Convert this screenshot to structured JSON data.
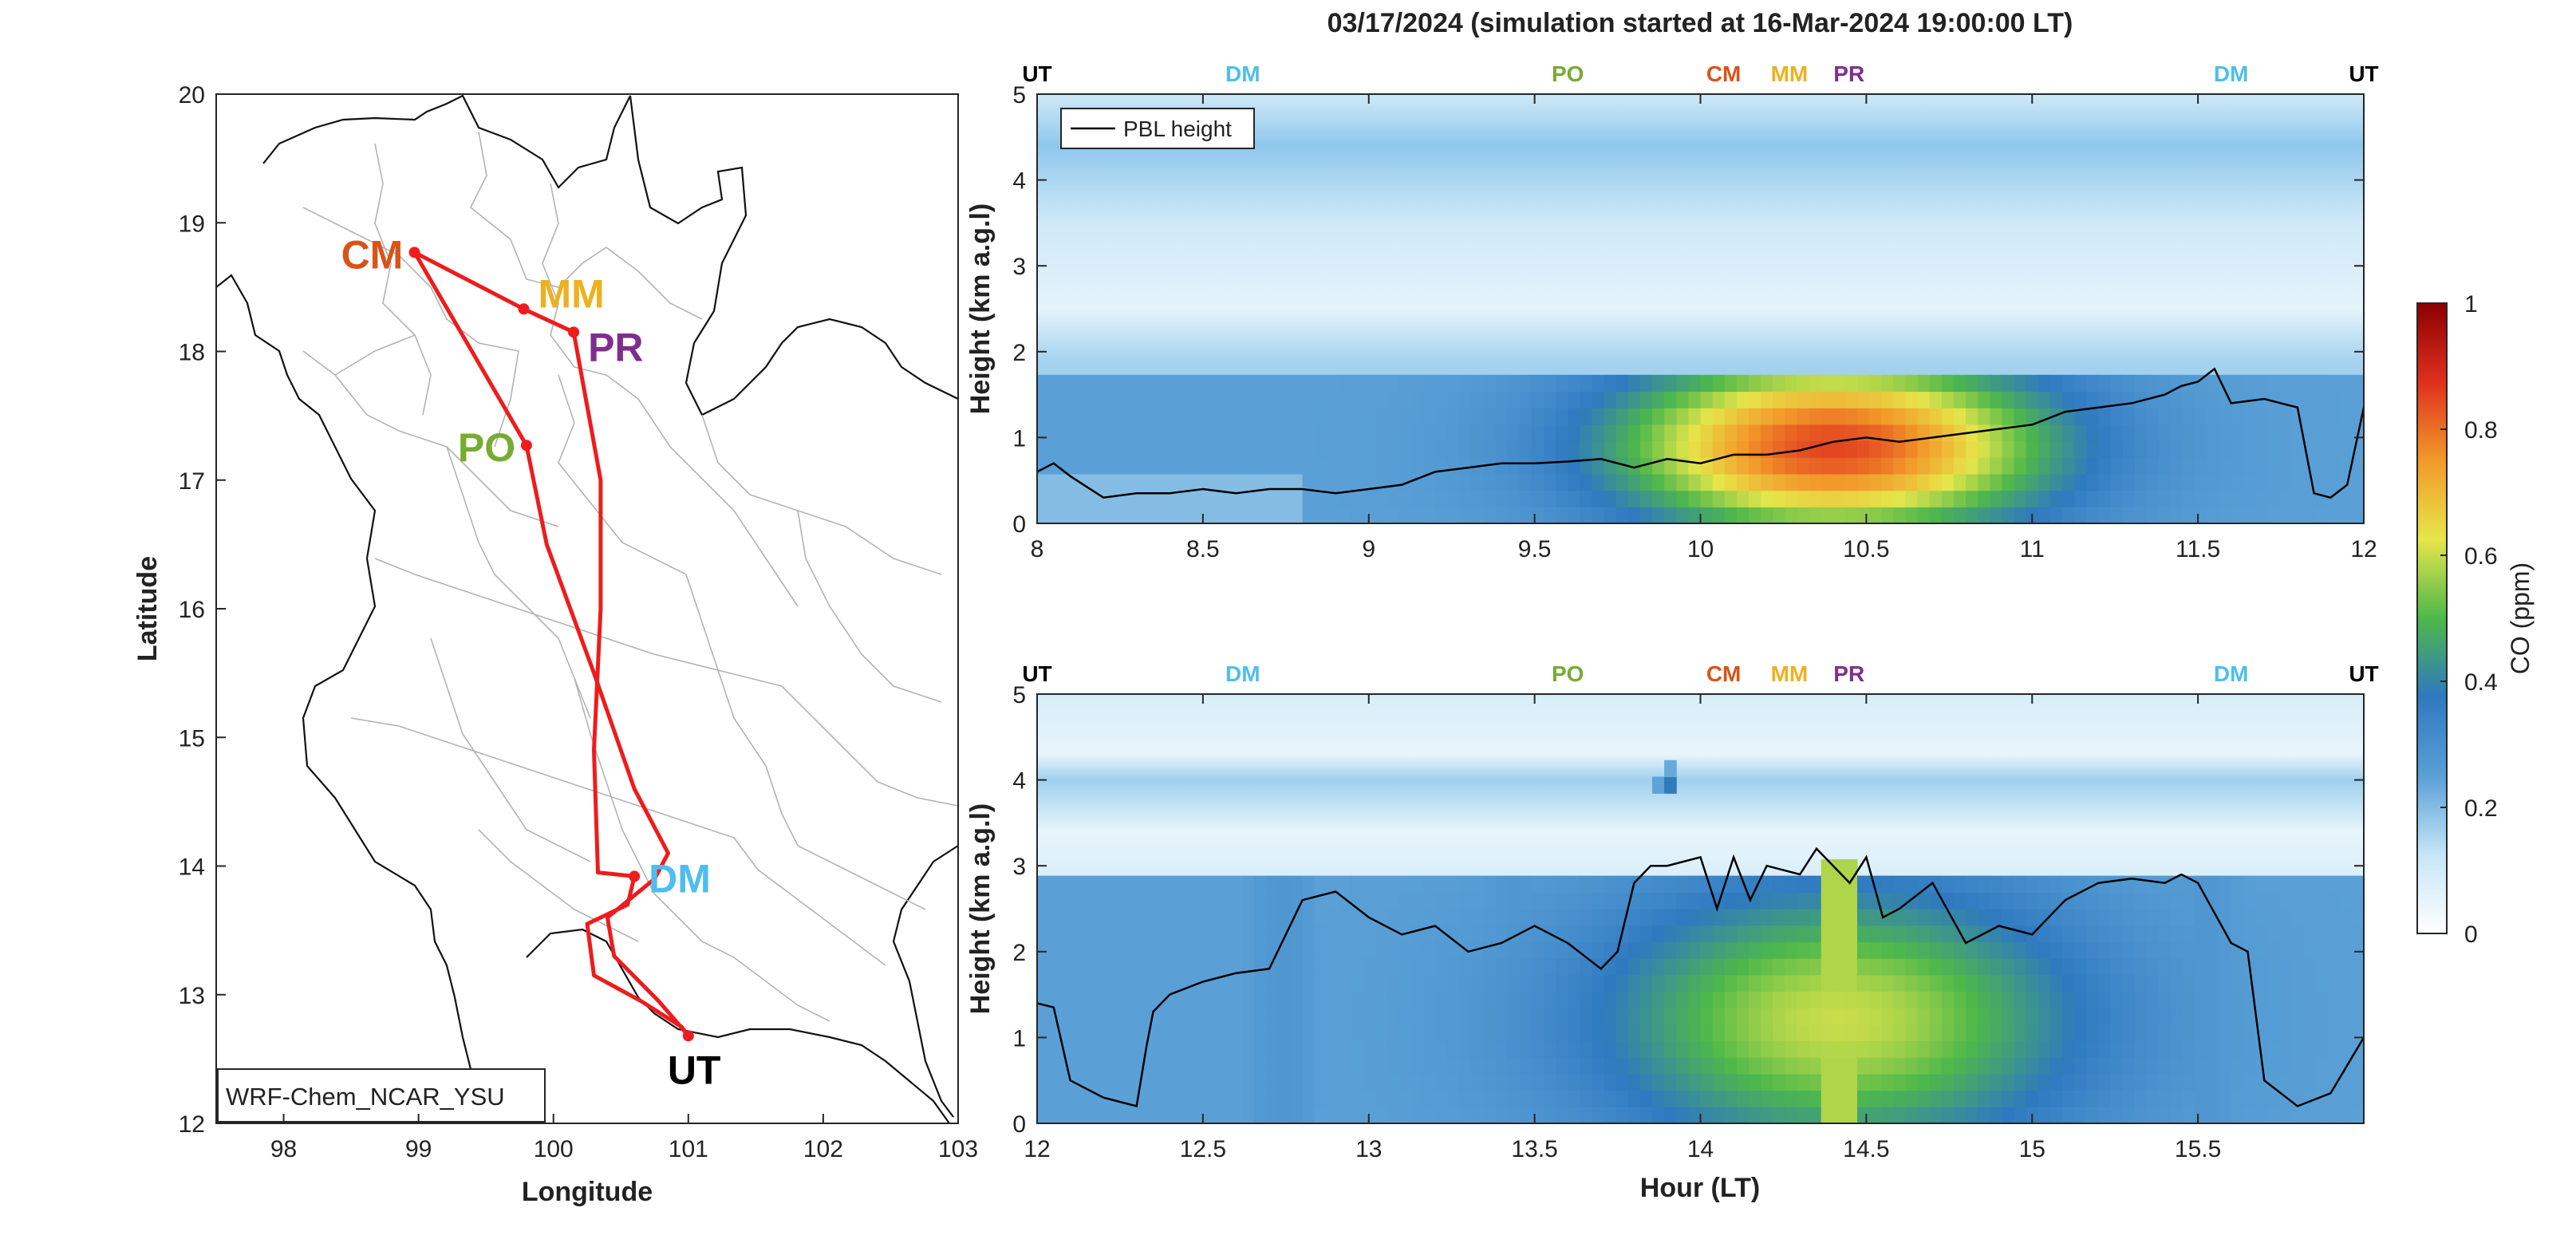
{
  "chart_data": [
    {
      "type": "map",
      "model_label": "WRF-Chem_NCAR_YSU",
      "xlabel": "Longitude",
      "ylabel": "Latitude",
      "xlim": [
        97.5,
        103
      ],
      "ylim": [
        12,
        20
      ],
      "xticks": [
        "98",
        "99",
        "100",
        "101",
        "102",
        "103"
      ],
      "yticks": [
        "12",
        "13",
        "14",
        "15",
        "16",
        "17",
        "18",
        "19",
        "20"
      ],
      "sites": [
        {
          "name": "CM",
          "lon": 98.97,
          "lat": 18.77,
          "color": "#D95319"
        },
        {
          "name": "MM",
          "lon": 99.78,
          "lat": 18.33,
          "color": "#EDB120"
        },
        {
          "name": "PR",
          "lon": 100.15,
          "lat": 18.15,
          "color": "#7E2F8E"
        },
        {
          "name": "PO",
          "lon": 99.8,
          "lat": 17.27,
          "color": "#77AC30"
        },
        {
          "name": "DM",
          "lon": 100.6,
          "lat": 13.92,
          "color": "#4DBEEE"
        },
        {
          "name": "UT",
          "lon": 101.0,
          "lat": 12.68,
          "color": "#000000"
        }
      ],
      "flight_track": [
        [
          101.0,
          12.68
        ],
        [
          100.92,
          12.78
        ],
        [
          100.78,
          12.95
        ],
        [
          100.45,
          13.3
        ],
        [
          100.4,
          13.6
        ],
        [
          100.75,
          13.9
        ],
        [
          100.85,
          14.1
        ],
        [
          100.6,
          14.6
        ],
        [
          100.3,
          15.5
        ],
        [
          99.95,
          16.5
        ],
        [
          99.8,
          17.27
        ],
        [
          98.97,
          18.77
        ],
        [
          99.78,
          18.33
        ],
        [
          100.15,
          18.15
        ],
        [
          100.35,
          17.0
        ],
        [
          100.35,
          16.0
        ],
        [
          100.3,
          14.9
        ],
        [
          100.33,
          13.95
        ],
        [
          100.6,
          13.92
        ],
        [
          100.55,
          13.7
        ],
        [
          100.25,
          13.55
        ],
        [
          100.3,
          13.15
        ],
        [
          100.65,
          12.95
        ],
        [
          100.95,
          12.75
        ],
        [
          101.0,
          12.68
        ]
      ],
      "track_color": "#EE1C1C"
    },
    {
      "type": "heatmap",
      "panel": "top",
      "title": "03/17/2024 (simulation started at 16-Mar-2024 19:00:00 LT)",
      "xlabel": "",
      "ylabel": "Height (km a.g.l)",
      "xlim": [
        8,
        12
      ],
      "ylim": [
        0,
        5
      ],
      "xticks": [
        "8",
        "8.5",
        "9",
        "9.5",
        "10",
        "10.5",
        "11",
        "11.5",
        "12"
      ],
      "yticks": [
        "0",
        "1",
        "2",
        "3",
        "4",
        "5"
      ],
      "site_markers": [
        {
          "label": "UT",
          "hour": 8.0,
          "color": "#000000"
        },
        {
          "label": "DM",
          "hour": 8.62,
          "color": "#4DBEEE"
        },
        {
          "label": "PO",
          "hour": 9.6,
          "color": "#77AC30"
        },
        {
          "label": "CM",
          "hour": 10.07,
          "color": "#D95319"
        },
        {
          "label": "MM",
          "hour": 10.3,
          "color": "#EDB120"
        },
        {
          "label": "PR",
          "hour": 10.43,
          "color": "#7E2F8E"
        },
        {
          "label": "DM",
          "hour": 11.6,
          "color": "#4DBEEE"
        },
        {
          "label": "UT",
          "hour": 12.0,
          "color": "#000000"
        }
      ],
      "legend": {
        "entries": [
          "PBL height"
        ],
        "location": "top-left"
      },
      "pbl_height": {
        "hour": [
          8.0,
          8.05,
          8.1,
          8.2,
          8.3,
          8.4,
          8.5,
          8.6,
          8.7,
          8.8,
          8.9,
          9.0,
          9.1,
          9.2,
          9.3,
          9.4,
          9.5,
          9.6,
          9.7,
          9.8,
          9.9,
          10.0,
          10.1,
          10.2,
          10.3,
          10.4,
          10.5,
          10.6,
          10.7,
          10.8,
          10.9,
          11.0,
          11.1,
          11.2,
          11.3,
          11.4,
          11.45,
          11.5,
          11.55,
          11.6,
          11.7,
          11.75,
          11.8,
          11.85,
          11.9,
          11.95,
          12.0
        ],
        "km": [
          0.6,
          0.7,
          0.55,
          0.3,
          0.35,
          0.35,
          0.4,
          0.35,
          0.4,
          0.4,
          0.35,
          0.4,
          0.45,
          0.6,
          0.65,
          0.7,
          0.7,
          0.72,
          0.75,
          0.65,
          0.75,
          0.7,
          0.8,
          0.8,
          0.85,
          0.95,
          1.0,
          0.95,
          1.0,
          1.05,
          1.1,
          1.15,
          1.3,
          1.35,
          1.4,
          1.5,
          1.6,
          1.65,
          1.8,
          1.4,
          1.45,
          1.4,
          1.35,
          0.35,
          0.3,
          0.45,
          1.35
        ]
      },
      "co_ppm_approx": {
        "background_surface": 0.25,
        "enhanced_layer_peak": 0.85,
        "enhanced_layer_peak_hour": 10.4,
        "enhanced_layer_peak_height_km": 1.0
      }
    },
    {
      "type": "heatmap",
      "panel": "bottom",
      "xlabel": "Hour (LT)",
      "ylabel": "Height (km a.g.l)",
      "xlim": [
        12,
        16
      ],
      "ylim": [
        0,
        5
      ],
      "xticks": [
        "12",
        "12.5",
        "13",
        "13.5",
        "14",
        "14.5",
        "15",
        "15.5"
      ],
      "yticks": [
        "0",
        "1",
        "2",
        "3",
        "4",
        "5"
      ],
      "site_markers": [
        {
          "label": "UT",
          "hour": 12.0,
          "color": "#000000"
        },
        {
          "label": "DM",
          "hour": 12.62,
          "color": "#4DBEEE"
        },
        {
          "label": "PO",
          "hour": 13.6,
          "color": "#77AC30"
        },
        {
          "label": "CM",
          "hour": 14.07,
          "color": "#D95319"
        },
        {
          "label": "MM",
          "hour": 14.3,
          "color": "#EDB120"
        },
        {
          "label": "PR",
          "hour": 14.43,
          "color": "#7E2F8E"
        },
        {
          "label": "DM",
          "hour": 15.6,
          "color": "#4DBEEE"
        },
        {
          "label": "UT",
          "hour": 16.0,
          "color": "#000000"
        }
      ],
      "pbl_height": {
        "hour": [
          12.0,
          12.05,
          12.1,
          12.2,
          12.3,
          12.33,
          12.35,
          12.4,
          12.5,
          12.6,
          12.7,
          12.75,
          12.8,
          12.9,
          13.0,
          13.1,
          13.2,
          13.3,
          13.4,
          13.5,
          13.6,
          13.7,
          13.75,
          13.8,
          13.85,
          13.9,
          14.0,
          14.05,
          14.1,
          14.15,
          14.2,
          14.3,
          14.35,
          14.4,
          14.45,
          14.5,
          14.55,
          14.6,
          14.7,
          14.8,
          14.9,
          15.0,
          15.1,
          15.2,
          15.3,
          15.4,
          15.45,
          15.5,
          15.6,
          15.65,
          15.7,
          15.8,
          15.9,
          16.0
        ],
        "km": [
          1.4,
          1.35,
          0.5,
          0.3,
          0.2,
          0.9,
          1.3,
          1.5,
          1.65,
          1.75,
          1.8,
          2.2,
          2.6,
          2.7,
          2.4,
          2.2,
          2.3,
          2.0,
          2.1,
          2.3,
          2.1,
          1.8,
          2.0,
          2.8,
          3.0,
          3.0,
          3.1,
          2.5,
          3.1,
          2.6,
          3.0,
          2.9,
          3.2,
          3.0,
          2.8,
          3.1,
          2.4,
          2.5,
          2.8,
          2.1,
          2.3,
          2.2,
          2.6,
          2.8,
          2.85,
          2.8,
          2.9,
          2.8,
          2.1,
          2.0,
          0.5,
          0.2,
          0.35,
          1.0
        ]
      },
      "co_ppm_approx": {
        "background_surface": 0.25,
        "enhanced_layer_peak": 0.6,
        "enhanced_layer_peak_hour": 14.42,
        "elevated_plume_hour": 13.9,
        "elevated_plume_height_km": 4.0
      }
    },
    {
      "type": "colorbar",
      "label": "CO (ppm)",
      "clim": [
        0,
        1
      ],
      "ticks": [
        "0",
        "0.2",
        "0.4",
        "0.6",
        "0.8",
        "1"
      ],
      "colormap": [
        "#ffffff",
        "#c6e6f7",
        "#5aa0d6",
        "#2f79c0",
        "#4db84a",
        "#e6e64a",
        "#f29a2a",
        "#e0301e",
        "#8b0000"
      ]
    }
  ]
}
